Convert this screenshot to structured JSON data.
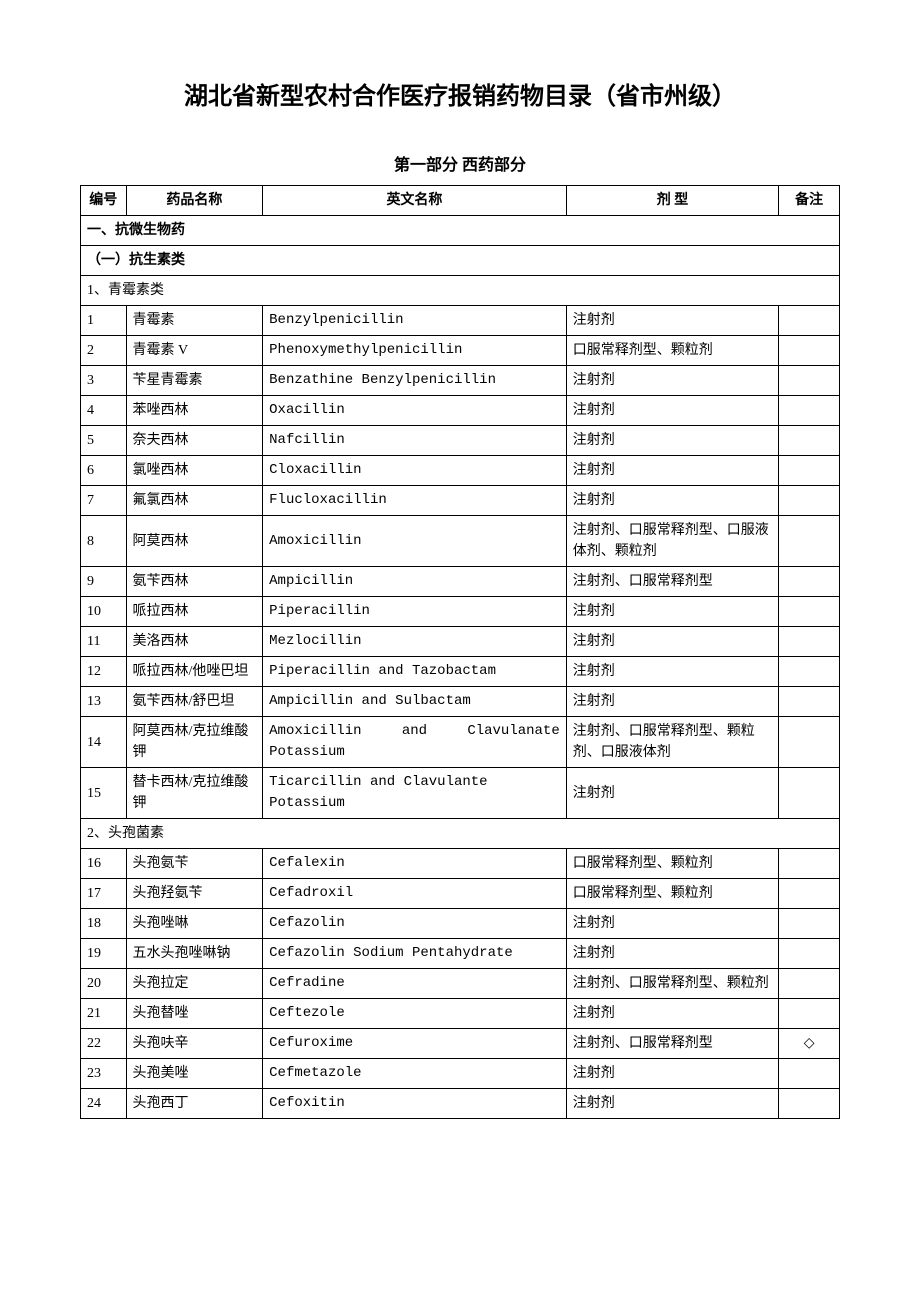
{
  "doc_title": "湖北省新型农村合作医疗报销药物目录（省市州级）",
  "part_title": "第一部分 西药部分",
  "headers": {
    "num": "编号",
    "name": "药品名称",
    "en": "英文名称",
    "form": "剂 型",
    "note": "备注"
  },
  "section1": "一、抗微生物药",
  "section1_1": "（一）抗生素类",
  "group1": "1、青霉素类",
  "group2": "2、头孢菌素",
  "rows": [
    {
      "n": "1",
      "name": "青霉素",
      "en": "Benzylpenicillin",
      "form": "注射剂",
      "note": ""
    },
    {
      "n": "2",
      "name": "青霉素 V",
      "en": "Phenoxymethylpenicillin",
      "form": "口服常释剂型、颗粒剂",
      "note": ""
    },
    {
      "n": "3",
      "name": "苄星青霉素",
      "en": "Benzathine Benzylpenicillin",
      "form": "注射剂",
      "note": ""
    },
    {
      "n": "4",
      "name": "苯唑西林",
      "en": "Oxacillin",
      "form": "注射剂",
      "note": ""
    },
    {
      "n": "5",
      "name": "奈夫西林",
      "en": "Nafcillin",
      "form": "注射剂",
      "note": ""
    },
    {
      "n": "6",
      "name": "氯唑西林",
      "en": "Cloxacillin",
      "form": "注射剂",
      "note": ""
    },
    {
      "n": "7",
      "name": "氟氯西林",
      "en": "Flucloxacillin",
      "form": "注射剂",
      "note": ""
    },
    {
      "n": "8",
      "name": "阿莫西林",
      "en": "Amoxicillin",
      "form": "注射剂、口服常释剂型、口服液体剂、颗粒剂",
      "note": ""
    },
    {
      "n": "9",
      "name": "氨苄西林",
      "en": "Ampicillin",
      "form": "注射剂、口服常释剂型",
      "note": ""
    },
    {
      "n": "10",
      "name": "哌拉西林",
      "en": "Piperacillin",
      "form": "注射剂",
      "note": ""
    },
    {
      "n": "11",
      "name": "美洛西林",
      "en": "Mezlocillin",
      "form": "注射剂",
      "note": ""
    },
    {
      "n": "12",
      "name": "哌拉西林/他唑巴坦",
      "en": "Piperacillin and Tazobactam",
      "form": "注射剂",
      "note": ""
    },
    {
      "n": "13",
      "name": "氨苄西林/舒巴坦",
      "en": "Ampicillin and Sulbactam",
      "form": "注射剂",
      "note": ""
    },
    {
      "n": "14",
      "name": "阿莫西林/克拉维酸钾",
      "en": "Amoxicillin and Clavulanate Potassium",
      "en_justify": true,
      "form": "注射剂、口服常释剂型、颗粒剂、口服液体剂",
      "note": ""
    },
    {
      "n": "15",
      "name": "替卡西林/克拉维酸钾",
      "en": "Ticarcillin and Clavulante Potassium",
      "form": "注射剂",
      "note": ""
    }
  ],
  "rows2": [
    {
      "n": "16",
      "name": "头孢氨苄",
      "en": "Cefalexin",
      "form": "口服常释剂型、颗粒剂",
      "note": ""
    },
    {
      "n": "17",
      "name": "头孢羟氨苄",
      "en": "Cefadroxil",
      "form": "口服常释剂型、颗粒剂",
      "note": ""
    },
    {
      "n": "18",
      "name": "头孢唑啉",
      "en": "Cefazolin",
      "form": "注射剂",
      "note": ""
    },
    {
      "n": "19",
      "name": "五水头孢唑啉钠",
      "en": "Cefazolin Sodium Pentahydrate",
      "form": "注射剂",
      "note": ""
    },
    {
      "n": "20",
      "name": "头孢拉定",
      "en": "Cefradine",
      "form": "注射剂、口服常释剂型、颗粒剂",
      "note": ""
    },
    {
      "n": "21",
      "name": "头孢替唑",
      "en": "Ceftezole",
      "form": "注射剂",
      "note": ""
    },
    {
      "n": "22",
      "name": "头孢呋辛",
      "en": "Cefuroxime",
      "form": "注射剂、口服常释剂型",
      "note": "◇"
    },
    {
      "n": "23",
      "name": "头孢美唑",
      "en": "Cefmetazole",
      "form": "注射剂",
      "note": ""
    },
    {
      "n": "24",
      "name": "头孢西丁",
      "en": "Cefoxitin",
      "form": "注射剂",
      "note": ""
    }
  ]
}
